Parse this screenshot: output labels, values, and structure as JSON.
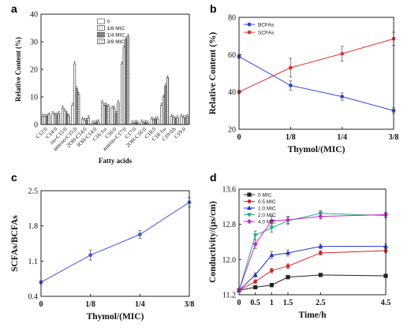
{
  "panels": {
    "a": {
      "label": "a"
    },
    "b": {
      "label": "b"
    },
    "c": {
      "label": "c"
    },
    "d": {
      "label": "d"
    }
  },
  "chart_data": [
    {
      "panel": "a",
      "type": "bar",
      "xlabel": "Fatty acids",
      "ylabel": "Relative Content (%)",
      "ylim": [
        0,
        40
      ],
      "yticks": [
        0,
        10,
        20,
        30,
        40
      ],
      "categories": [
        "C12:0",
        "C14:0",
        "iso-C15:0",
        "anteiso-C15:0",
        "2OH-C14:0",
        "3OH-C14:0",
        "C16:1ω",
        "C16:0",
        "anteiso-C17:0",
        "C17:0",
        "2OH-C16:0",
        "C18:0",
        "C18:1ω",
        "C19:0Δ",
        "C19:0"
      ],
      "legend_position": "top-right",
      "series": [
        {
          "name": "0",
          "color": "#ffffff",
          "pattern": "none",
          "values": [
            3,
            4,
            6,
            7,
            2,
            0.5,
            8,
            6,
            22,
            0.5,
            1,
            2,
            7,
            3,
            3
          ]
        },
        {
          "name": "1/8 MIC",
          "color": "#cccccc",
          "pattern": "hatch",
          "values": [
            3,
            3.5,
            5,
            22,
            1.5,
            0.5,
            7,
            6,
            28,
            0.5,
            0.5,
            1.5,
            10,
            2.5,
            2.5
          ]
        },
        {
          "name": "1/4 MIC",
          "color": "#777777",
          "pattern": "dense",
          "values": [
            3,
            3.5,
            4,
            13,
            1.5,
            0.8,
            7,
            4,
            31,
            0.8,
            0.8,
            2,
            14,
            2,
            2.5
          ]
        },
        {
          "name": "3/8 MIC",
          "color": "#aaaaaa",
          "pattern": "grid",
          "values": [
            3.5,
            4,
            3,
            11,
            2.5,
            1,
            6.5,
            8,
            32,
            0.5,
            0.5,
            2,
            17,
            2.5,
            3
          ]
        }
      ],
      "error": 0.7
    },
    {
      "panel": "b",
      "type": "line",
      "xlabel": "Thymol/(MIC)",
      "ylabel": "Relative Content (%)",
      "categories": [
        "0",
        "1/8",
        "1/4",
        "3/8"
      ],
      "ylim": [
        20,
        80
      ],
      "yticks": [
        20,
        40,
        60,
        80
      ],
      "legend_position": "top-left",
      "series": [
        {
          "name": "BCFAs",
          "color": "#3344dd",
          "marker": "circle",
          "values": [
            59,
            43.5,
            37.5,
            30
          ],
          "err": [
            1.0,
            2.5,
            2.0,
            1.5
          ]
        },
        {
          "name": "SCFAs",
          "color": "#dd3333",
          "marker": "circle",
          "values": [
            40,
            53,
            60.5,
            68.5
          ],
          "err": [
            1.0,
            5.0,
            4.0,
            3.5
          ]
        }
      ]
    },
    {
      "panel": "c",
      "type": "line",
      "xlabel": "Thymol/(MIC)",
      "ylabel": "SCFAs/BCFAs",
      "categories": [
        "0",
        "1/8",
        "1/4",
        "3/8"
      ],
      "ylim": [
        0.4,
        2.5
      ],
      "yticks": [
        0.4,
        1.1,
        1.8,
        2.5
      ],
      "series": [
        {
          "name": "",
          "color": "#4455dd",
          "marker": "circle",
          "values": [
            0.68,
            1.22,
            1.63,
            2.27
          ],
          "err": [
            0.03,
            0.1,
            0.08,
            0.09
          ]
        }
      ]
    },
    {
      "panel": "d",
      "type": "line",
      "xlabel": "Time/h",
      "ylabel": "Conductivity/(μs/cm)",
      "x": [
        0,
        0.5,
        1,
        1.5,
        2.5,
        4.5
      ],
      "xticks": [
        "0",
        "0.5",
        "1",
        "1.5",
        "2.5",
        "4.5"
      ],
      "xlim": [
        0,
        4.5
      ],
      "ylim": [
        11.2,
        13.6
      ],
      "yticks": [
        11.2,
        12.0,
        12.8,
        13.6
      ],
      "legend_position": "top-left",
      "series": [
        {
          "name": "0 MIC",
          "color": "#222222",
          "marker": "square",
          "values": [
            11.3,
            11.37,
            11.42,
            11.6,
            11.65,
            11.63
          ],
          "err": [
            0.03,
            0.03,
            0.04,
            0.04,
            0.03,
            0.03
          ]
        },
        {
          "name": "0.5 MIC",
          "color": "#dd2222",
          "marker": "circle",
          "values": [
            11.3,
            11.5,
            11.75,
            11.85,
            12.15,
            12.2
          ],
          "err": [
            0.03,
            0.04,
            0.05,
            0.05,
            0.05,
            0.05
          ]
        },
        {
          "name": "1.0 MIC",
          "color": "#2233cc",
          "marker": "triangle",
          "values": [
            11.3,
            11.65,
            12.1,
            12.15,
            12.3,
            12.3
          ],
          "err": [
            0.03,
            0.05,
            0.08,
            0.07,
            0.05,
            0.05
          ]
        },
        {
          "name": "2.0 MIC",
          "color": "#22aa88",
          "marker": "triangle-down",
          "values": [
            11.3,
            12.55,
            12.72,
            12.88,
            13.05,
            13.0
          ],
          "err": [
            0.03,
            0.1,
            0.1,
            0.08,
            0.06,
            0.05
          ]
        },
        {
          "name": "4.0 MIC",
          "color": "#cc22cc",
          "marker": "diamond",
          "values": [
            11.3,
            12.35,
            12.88,
            12.9,
            12.98,
            13.02
          ],
          "err": [
            0.03,
            0.1,
            0.1,
            0.08,
            0.06,
            0.05
          ]
        }
      ]
    }
  ]
}
